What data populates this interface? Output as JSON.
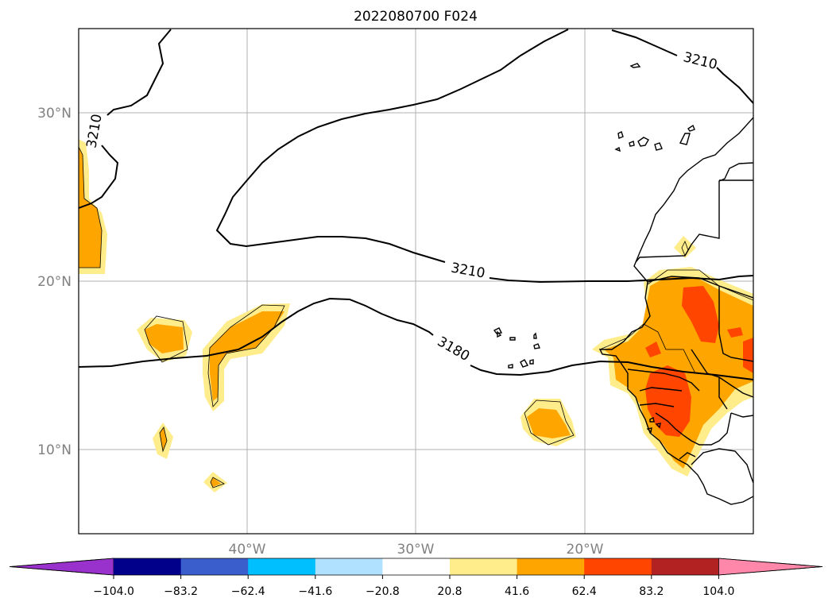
{
  "title": "2022080700 F024",
  "axes": {
    "lat_labels": [
      "30°N",
      "20°N",
      "10°N"
    ],
    "lon_labels": [
      "40°W",
      "30°W",
      "20°W"
    ]
  },
  "contour_labels": [
    "3210",
    "3210",
    "3210",
    "3180"
  ],
  "colorbar": {
    "tick_labels": [
      "−104.0",
      "−83.2",
      "−62.4",
      "−41.6",
      "−20.8",
      "20.8",
      "41.6",
      "62.4",
      "83.2",
      "104.0"
    ],
    "colors": [
      "#9932CC",
      "#00008B",
      "#3A5FCD",
      "#00BFFF",
      "#B0E2FF",
      "#FFFFFF",
      "#FFEC8B",
      "#FFA500",
      "#FF4500",
      "#B22222",
      "#FF88AA"
    ]
  },
  "colors": {
    "fill_light": "#FFEC8B",
    "fill_mid": "#FFA500",
    "fill_high": "#FF4500",
    "grid": "#b0b0b0"
  }
}
